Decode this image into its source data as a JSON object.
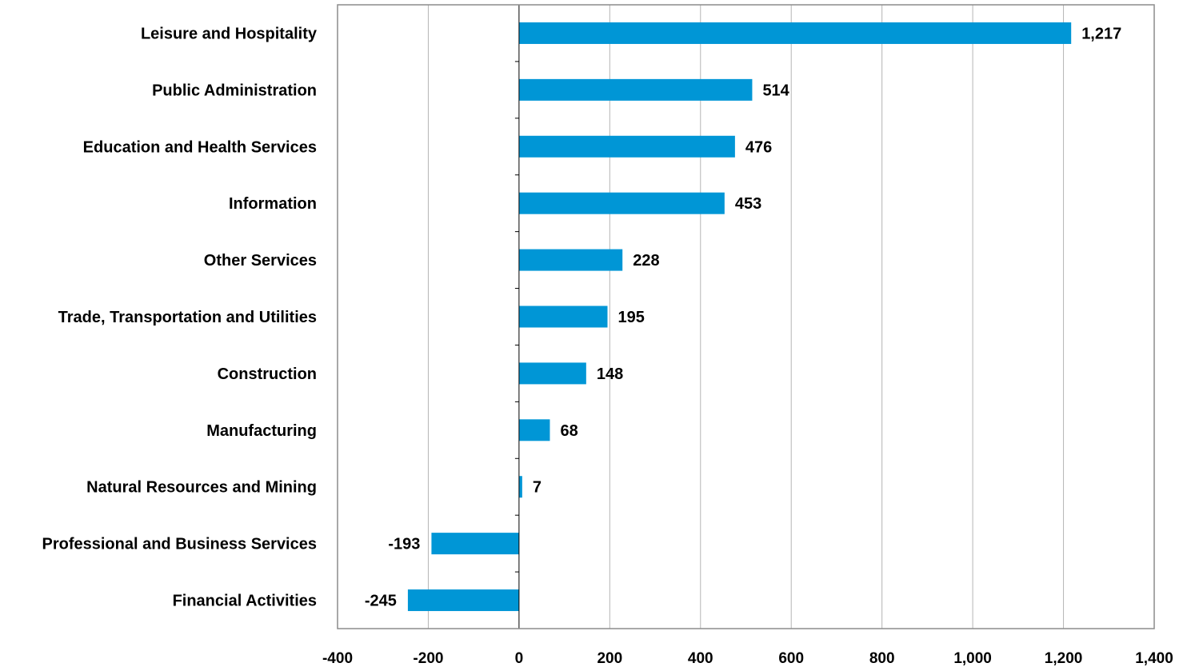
{
  "chart_data": {
    "type": "bar",
    "orientation": "horizontal",
    "categories": [
      "Leisure and Hospitality",
      "Public Administration",
      "Education and Health Services",
      "Information",
      "Other Services",
      "Trade, Transportation and Utilities",
      "Construction",
      "Manufacturing",
      "Natural Resources and Mining",
      "Professional and Business Services",
      "Financial Activities"
    ],
    "values": [
      1217,
      514,
      476,
      453,
      228,
      195,
      148,
      68,
      7,
      -193,
      -245
    ],
    "value_labels": [
      "1,217",
      "514",
      "476",
      "453",
      "228",
      "195",
      "148",
      "68",
      "7",
      "-193",
      "-245"
    ],
    "title": "",
    "xlabel": "",
    "ylabel": "",
    "xlim": [
      -400,
      1400
    ],
    "x_ticks": [
      -400,
      -200,
      0,
      200,
      400,
      600,
      800,
      1000,
      1200,
      1400
    ],
    "x_tick_labels": [
      "-400",
      "-200",
      "0",
      "200",
      "400",
      "600",
      "800",
      "1,000",
      "1,200",
      "1,400"
    ],
    "grid": "vertical",
    "bar_color": "#0096D6",
    "legend": "none"
  }
}
